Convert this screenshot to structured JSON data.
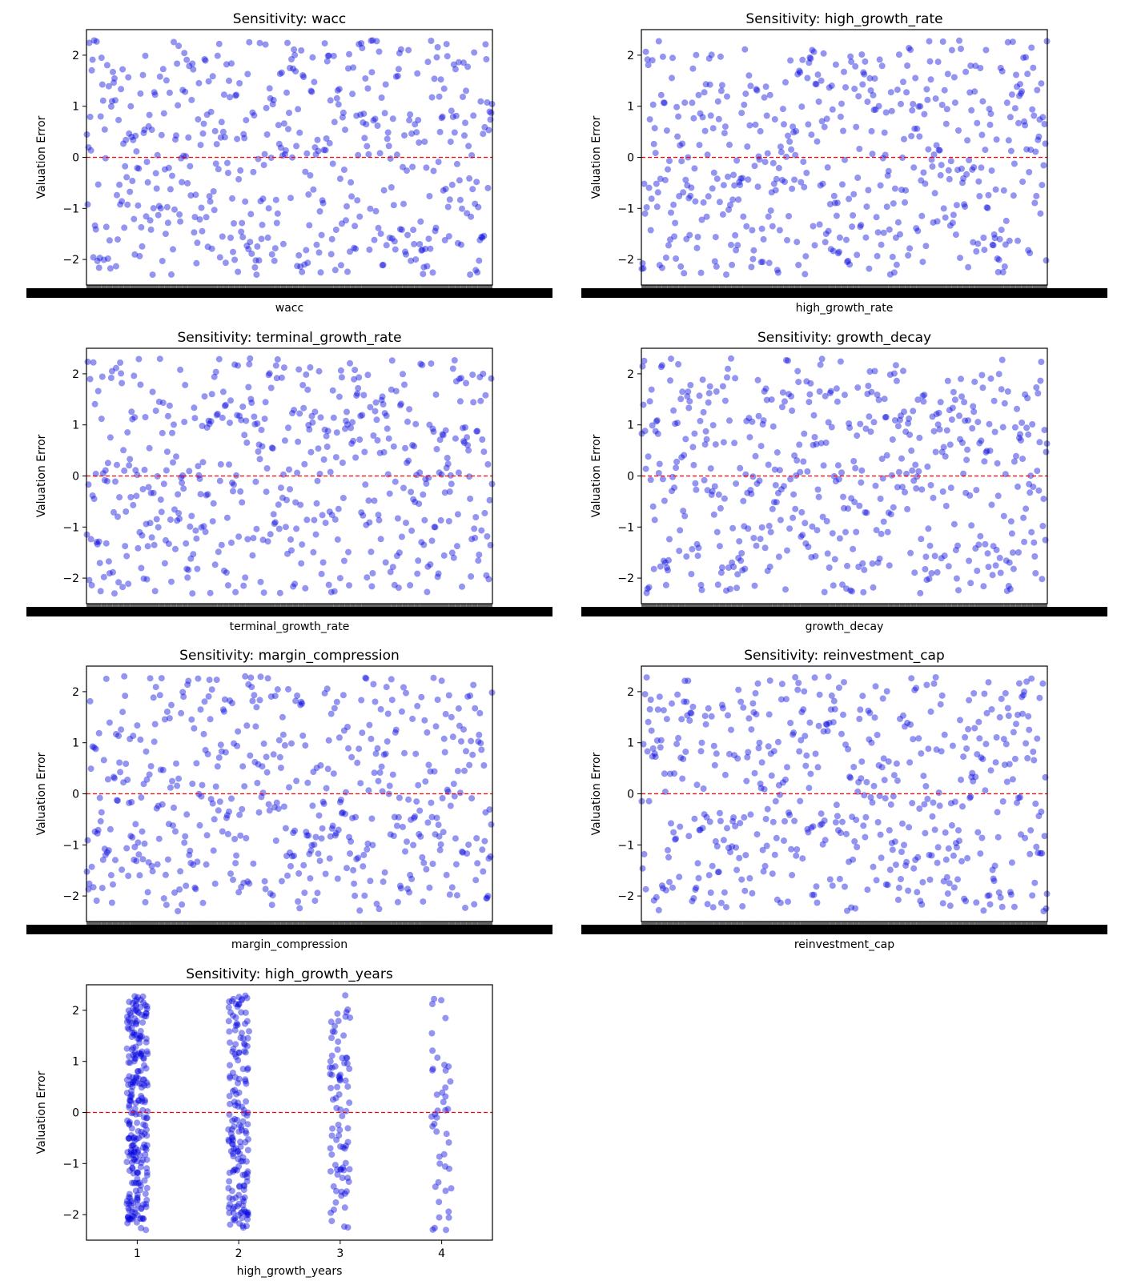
{
  "colors": {
    "point": "#0000dd",
    "zero_line": "#ff0000",
    "frame": "#000000",
    "background": "#ffffff"
  },
  "chart_data": [
    {
      "type": "scatter",
      "title": "Sensitivity: wacc",
      "xlabel": "wacc",
      "ylabel": "Valuation Error",
      "ylim": [
        -2.5,
        2.5
      ],
      "yticks": [
        "2",
        "1",
        "0",
        "−1",
        "−2"
      ],
      "grid": false,
      "x_axis": "categorical, ~500 unique values, tick labels overlapping and illegible",
      "reference_line": {
        "y": 0,
        "style": "dashed",
        "color": "red"
      },
      "series": [
        {
          "y_distribution": "uniform-looking scatter spanning approximately −2.3 to 2.3",
          "approx_count": 500
        }
      ]
    },
    {
      "type": "scatter",
      "title": "Sensitivity: high_growth_rate",
      "xlabel": "high_growth_rate",
      "ylabel": "Valuation Error",
      "ylim": [
        -2.5,
        2.5
      ],
      "yticks": [
        "2",
        "1",
        "0",
        "−1",
        "−2"
      ],
      "grid": false,
      "x_axis": "categorical, ~500 unique values, tick labels overlapping and illegible",
      "reference_line": {
        "y": 0,
        "style": "dashed",
        "color": "red"
      },
      "series": [
        {
          "y_distribution": "uniform-looking scatter spanning approximately −2.3 to 2.3",
          "approx_count": 500
        }
      ]
    },
    {
      "type": "scatter",
      "title": "Sensitivity: terminal_growth_rate",
      "xlabel": "terminal_growth_rate",
      "ylabel": "Valuation Error",
      "ylim": [
        -2.5,
        2.5
      ],
      "yticks": [
        "2",
        "1",
        "0",
        "−1",
        "−2"
      ],
      "grid": false,
      "x_axis": "categorical, ~500 unique values, tick labels overlapping and illegible",
      "reference_line": {
        "y": 0,
        "style": "dashed",
        "color": "red"
      },
      "series": [
        {
          "y_distribution": "uniform-looking scatter spanning approximately −2.3 to 2.3",
          "approx_count": 500
        }
      ]
    },
    {
      "type": "scatter",
      "title": "Sensitivity: growth_decay",
      "xlabel": "growth_decay",
      "ylabel": "Valuation Error",
      "ylim": [
        -2.5,
        2.5
      ],
      "yticks": [
        "2",
        "1",
        "0",
        "−1",
        "−2"
      ],
      "grid": false,
      "x_axis": "categorical, ~500 unique values, tick labels overlapping and illegible",
      "reference_line": {
        "y": 0,
        "style": "dashed",
        "color": "red"
      },
      "series": [
        {
          "y_distribution": "uniform-looking scatter spanning approximately −2.3 to 2.3",
          "approx_count": 500
        }
      ]
    },
    {
      "type": "scatter",
      "title": "Sensitivity: margin_compression",
      "xlabel": "margin_compression",
      "ylabel": "Valuation Error",
      "ylim": [
        -2.5,
        2.5
      ],
      "yticks": [
        "2",
        "1",
        "0",
        "−1",
        "−2"
      ],
      "grid": false,
      "x_axis": "categorical, ~500 unique values, tick labels overlapping and illegible",
      "reference_line": {
        "y": 0,
        "style": "dashed",
        "color": "red"
      },
      "series": [
        {
          "y_distribution": "uniform-looking scatter spanning approximately −2.3 to 2.3",
          "approx_count": 500
        }
      ]
    },
    {
      "type": "scatter",
      "title": "Sensitivity: reinvestment_cap",
      "xlabel": "reinvestment_cap",
      "ylabel": "Valuation Error",
      "ylim": [
        -2.5,
        2.5
      ],
      "yticks": [
        "2",
        "1",
        "0",
        "−1",
        "−2"
      ],
      "grid": false,
      "x_axis": "categorical, ~500 unique values, tick labels overlapping and illegible",
      "reference_line": {
        "y": 0,
        "style": "dashed",
        "color": "red"
      },
      "series": [
        {
          "y_distribution": "uniform-looking scatter spanning approximately −2.3 to 2.3",
          "approx_count": 500
        }
      ]
    },
    {
      "type": "scatter",
      "title": "Sensitivity: high_growth_years",
      "xlabel": "high_growth_years",
      "ylabel": "Valuation Error",
      "ylim": [
        -2.5,
        2.5
      ],
      "yticks": [
        "2",
        "1",
        "0",
        "−1",
        "−2"
      ],
      "grid": false,
      "categories": [
        "1",
        "2",
        "3",
        "4"
      ],
      "reference_line": {
        "y": 0,
        "style": "dashed",
        "color": "red"
      },
      "series": [
        {
          "category": "1",
          "approx_count": 250,
          "y_range": [
            -2.3,
            2.3
          ]
        },
        {
          "category": "2",
          "approx_count": 170,
          "y_range": [
            -2.3,
            2.3
          ]
        },
        {
          "category": "3",
          "approx_count": 85,
          "y_range": [
            -2.3,
            2.3
          ]
        },
        {
          "category": "4",
          "approx_count": 45,
          "y_range": [
            -2.3,
            2.3
          ]
        }
      ]
    }
  ]
}
